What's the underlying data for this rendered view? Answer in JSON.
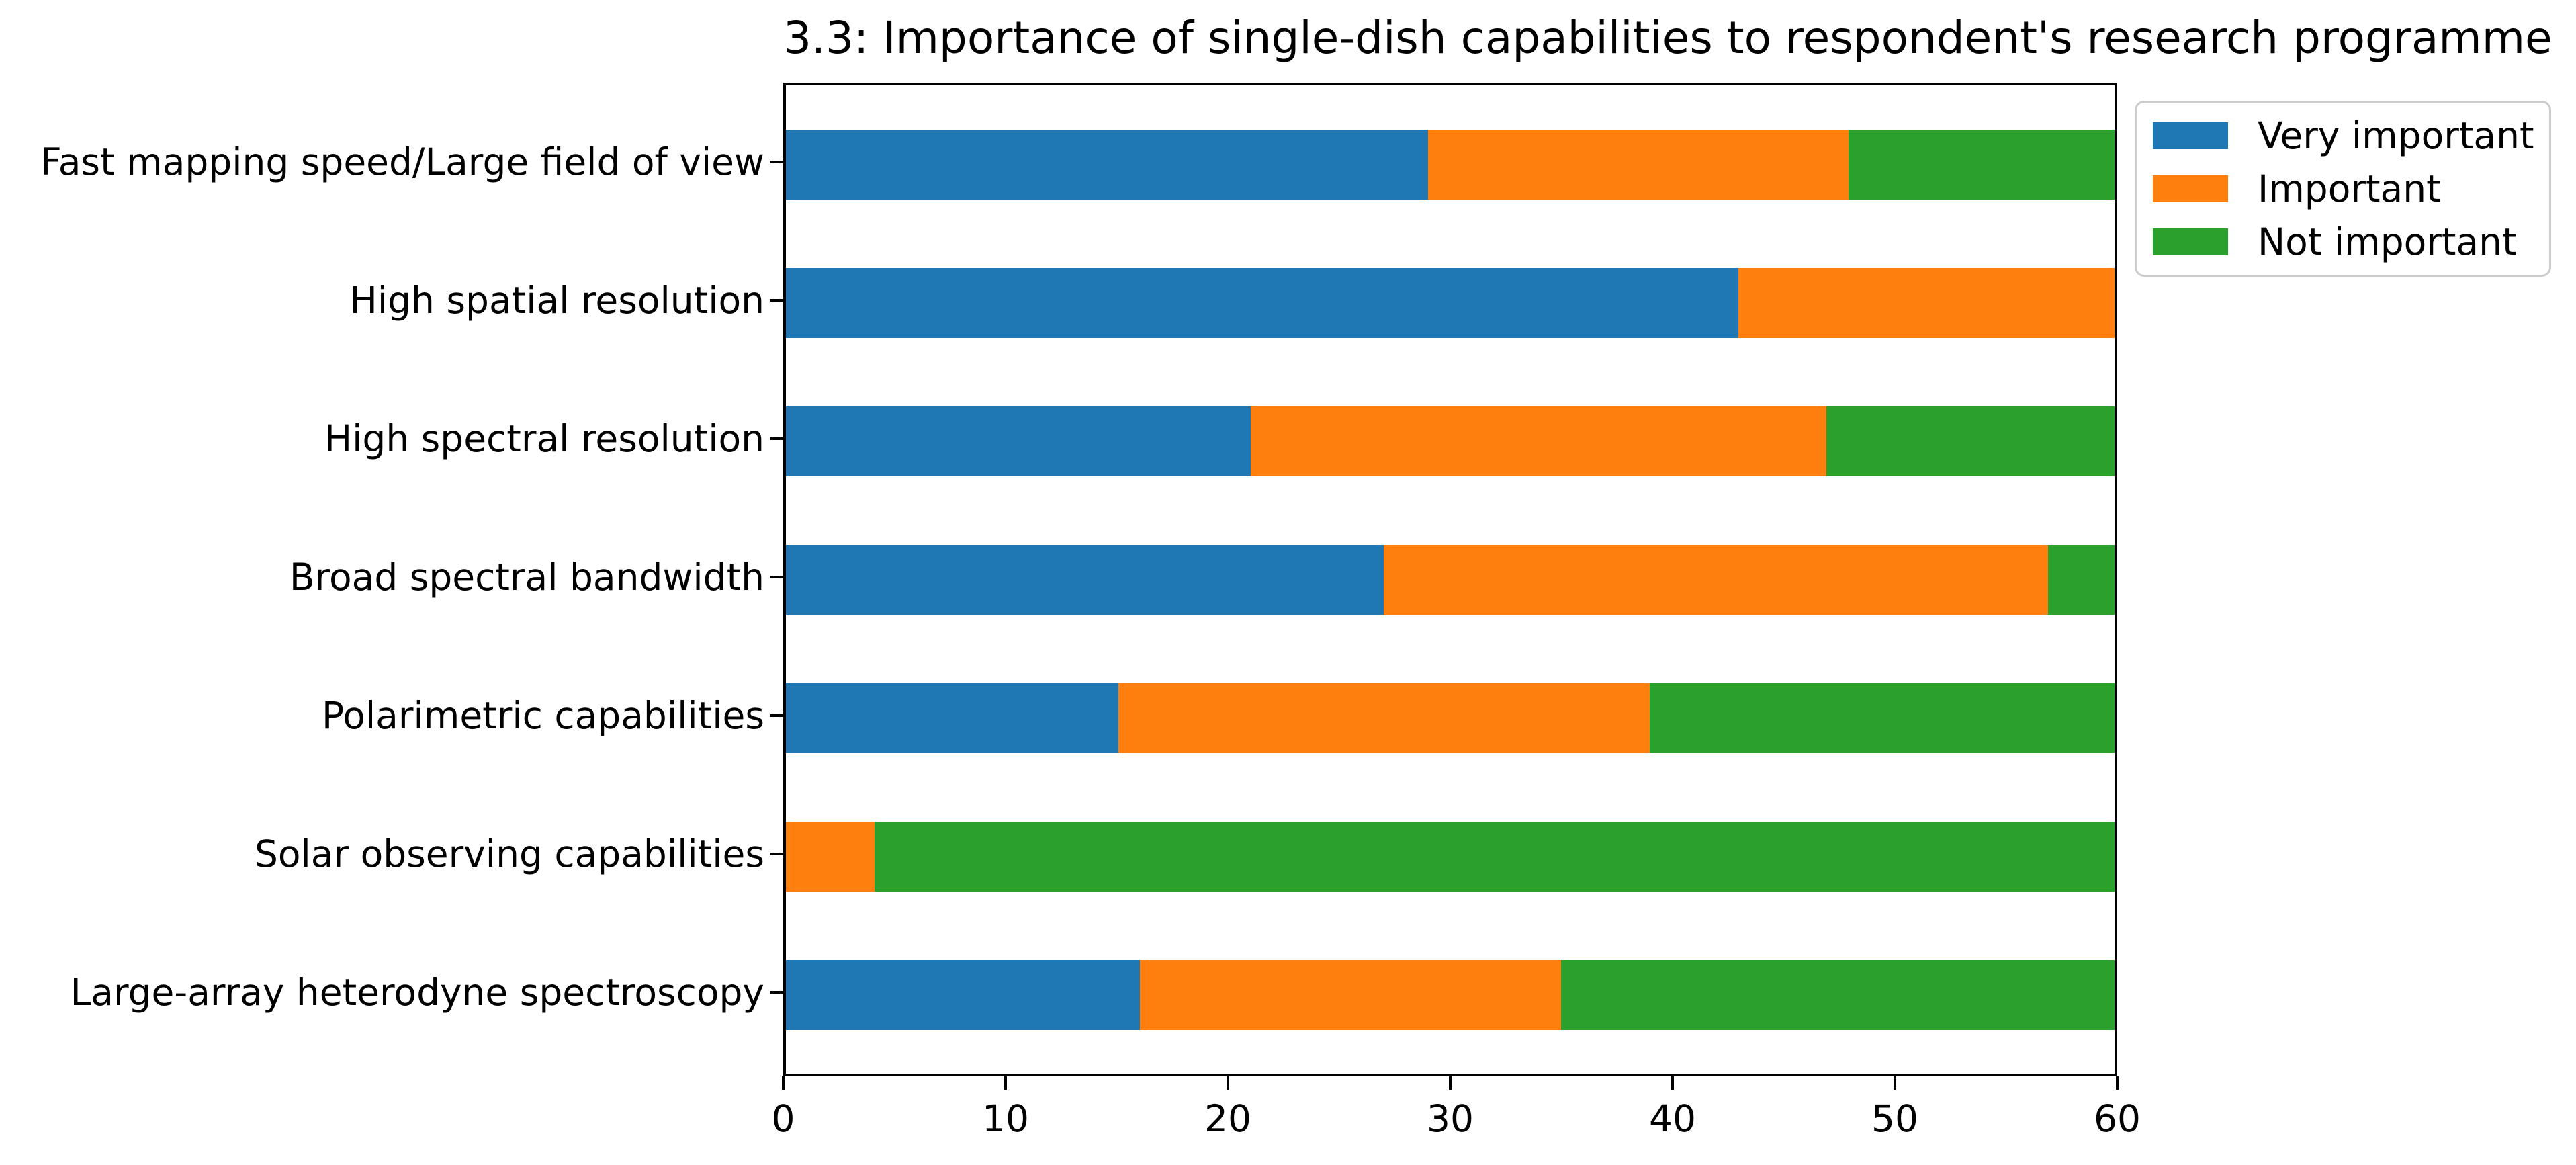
{
  "chart_data": {
    "type": "bar",
    "orientation": "horizontal",
    "stacked": true,
    "title": "3.3: Importance of single-dish capabilities to respondent's research programme",
    "categories": [
      "Fast mapping speed/Large field of view",
      "High spatial resolution",
      "High spectral resolution",
      "Broad spectral bandwidth",
      "Polarimetric capabilities",
      "Solar observing capabilities",
      "Large-array heterodyne spectroscopy"
    ],
    "series": [
      {
        "name": "Very important",
        "color": "#1f77b4",
        "values": [
          29,
          43,
          21,
          27,
          15,
          0,
          16
        ]
      },
      {
        "name": "Important",
        "color": "#ff7f0e",
        "values": [
          19,
          17,
          26,
          30,
          24,
          4,
          19
        ]
      },
      {
        "name": "Not important",
        "color": "#2ca02c",
        "values": [
          12,
          0,
          13,
          3,
          21,
          56,
          25
        ]
      }
    ],
    "xlabel": "",
    "ylabel": "",
    "xlim": [
      0,
      60
    ],
    "xticks": [
      0,
      10,
      20,
      30,
      40,
      50,
      60
    ],
    "grid": false,
    "legend_position": "upper-right-outside",
    "axis_color": "#000000",
    "background_color": "#ffffff",
    "legend_border_color": "#cccccc"
  }
}
